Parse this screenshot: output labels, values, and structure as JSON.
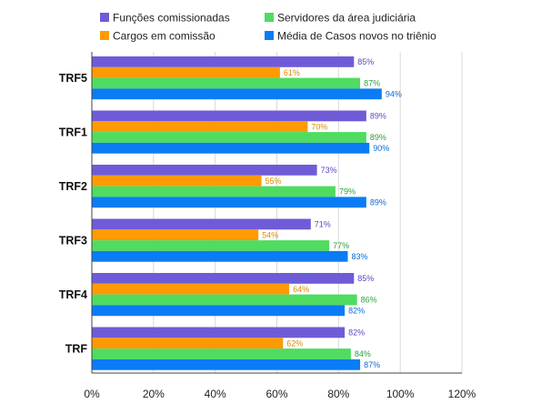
{
  "chart_data": {
    "type": "bar",
    "orientation": "horizontal",
    "title": "",
    "xlabel": "",
    "ylabel": "",
    "xlim": [
      0,
      120
    ],
    "x_ticks": [
      "0%",
      "20%",
      "40%",
      "60%",
      "80%",
      "100%",
      "120%"
    ],
    "grid": true,
    "legend_position": "top",
    "categories": [
      "TRF5",
      "TRF1",
      "TRF2",
      "TRF3",
      "TRF4",
      "TRF"
    ],
    "series": [
      {
        "name": "Funções comissionadas",
        "color": "#6f5bd8",
        "label_color": "#5a48c8",
        "values": [
          85,
          89,
          73,
          71,
          85,
          82
        ],
        "labels": [
          "85%",
          "89%",
          "73%",
          "71%",
          "85%",
          "82%"
        ]
      },
      {
        "name": "Cargos em comissão",
        "color": "#ff9a05",
        "label_color": "#e08a00",
        "values": [
          61,
          70,
          55,
          54,
          64,
          62
        ],
        "labels": [
          "61%",
          "70%",
          "55%",
          "54%",
          "64%",
          "62%"
        ]
      },
      {
        "name": "Servidores da área judiciária",
        "color": "#4fdc60",
        "label_color": "#2e9e3e",
        "values": [
          87,
          89,
          79,
          77,
          86,
          84
        ],
        "labels": [
          "87%",
          "89%",
          "79%",
          "77%",
          "86%",
          "84%"
        ]
      },
      {
        "name": "Média de Casos novos no triênio",
        "color": "#0a7cf5",
        "label_color": "#0a6ad6",
        "values": [
          94,
          90,
          89,
          83,
          82,
          87
        ],
        "labels": [
          "94%",
          "90%",
          "89%",
          "83%",
          "82%",
          "87%"
        ]
      }
    ]
  }
}
